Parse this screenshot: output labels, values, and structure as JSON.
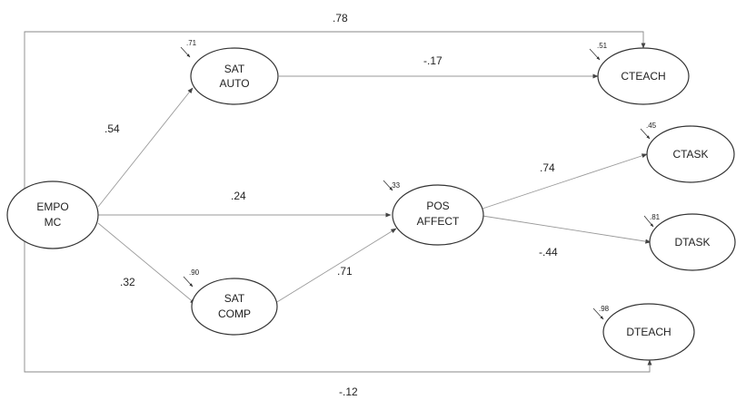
{
  "nodes": {
    "empo_mc": {
      "line1": "EMPO",
      "line2": "MC"
    },
    "sat_auto": {
      "line1": "SAT",
      "line2": "AUTO",
      "error": ".71"
    },
    "sat_comp": {
      "line1": "SAT",
      "line2": "COMP",
      "error": ".90"
    },
    "pos_affect": {
      "line1": "POS",
      "line2": "AFFECT",
      "error": ".33"
    },
    "cteach": {
      "label": "CTEACH",
      "error": ".51"
    },
    "ctask": {
      "label": "CTASK",
      "error": ".45"
    },
    "dtask": {
      "label": "DTASK",
      "error": ".81"
    },
    "dteach": {
      "label": "DTEACH",
      "error": ".98"
    }
  },
  "paths": {
    "empo_cteach": ".78",
    "empo_satauto": ".54",
    "empo_pos": ".24",
    "empo_satcomp": ".32",
    "empo_dteach": "-.12",
    "satauto_cteach": "-.17",
    "satcomp_pos": ".71",
    "pos_ctask": ".74",
    "pos_dtask": "-.44"
  }
}
